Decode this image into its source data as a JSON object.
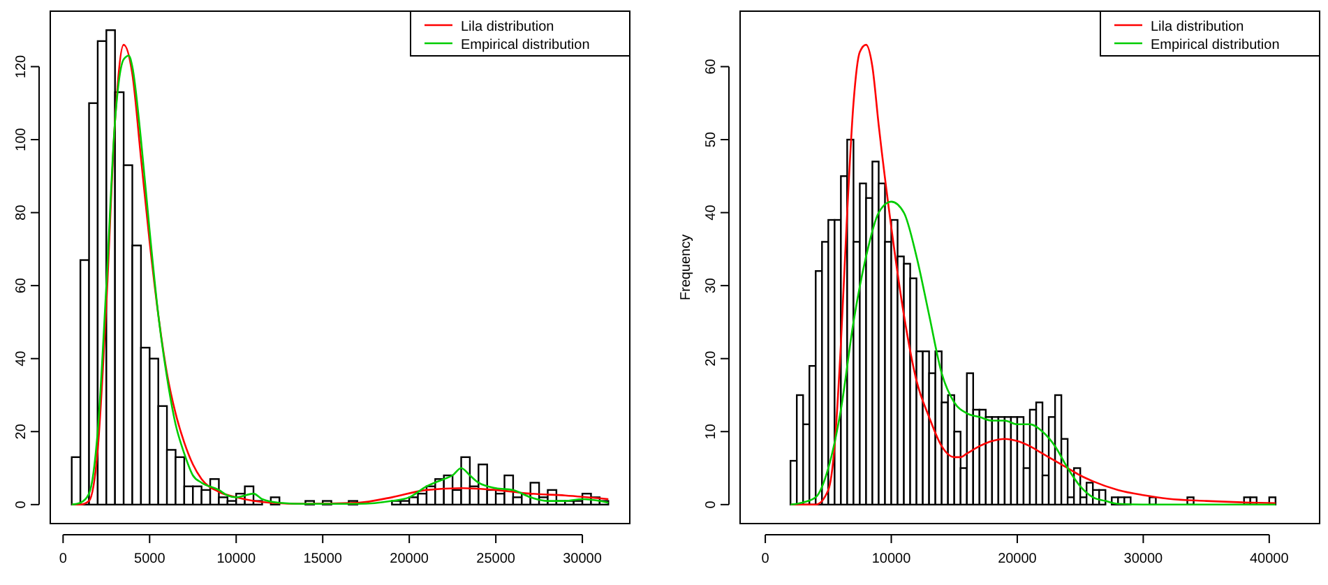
{
  "chart_data": [
    {
      "type": "histogram",
      "color": "#ffffff",
      "legend": "top right",
      "bins": [
        500,
        1000,
        1500,
        2000,
        2500,
        3000,
        3500,
        4000,
        4500,
        5000,
        5500,
        6000,
        6500,
        7000,
        7500,
        8000,
        8500,
        9000,
        9500,
        10000,
        10500,
        11000,
        11500,
        12000,
        12500,
        13000,
        13500,
        14000,
        14500,
        15000,
        15500,
        16000,
        16500,
        17000,
        17500,
        18000,
        18500,
        19000,
        19500,
        20000,
        20500,
        21000,
        21500,
        22000,
        22500,
        23000,
        23500,
        24000,
        24500,
        25000,
        25500,
        26000,
        26500,
        27000,
        27500,
        28000,
        28500,
        29000,
        29500,
        30000,
        30500,
        31000,
        31500
      ],
      "values": [
        13,
        67,
        110,
        127,
        130,
        113,
        93,
        71,
        43,
        40,
        27,
        15,
        13,
        5,
        5,
        4,
        7,
        2,
        1,
        3,
        5,
        1,
        0,
        2,
        0,
        0,
        0,
        1,
        0,
        1,
        0,
        0,
        1,
        0,
        0,
        0,
        0,
        1,
        1,
        2,
        3,
        5,
        7,
        8,
        4,
        13,
        5,
        11,
        4,
        3,
        8,
        2,
        3,
        6,
        2,
        4,
        1,
        1,
        1,
        3,
        2,
        1
      ],
      "series": [
        {
          "name": "Lila distribution",
          "type": "line",
          "color": "#ff0000",
          "x": [
            500,
            1000,
            1500,
            2000,
            2500,
            3000,
            3500,
            4000,
            4500,
            5000,
            5500,
            6000,
            6500,
            7000,
            7500,
            8000,
            9000,
            10000,
            11000,
            12000,
            14000,
            17000,
            19000,
            21000,
            23000,
            25000,
            27000,
            29000,
            31500
          ],
          "values": [
            0,
            0,
            1,
            15,
            55,
            105,
            126,
            118,
            95,
            72,
            52,
            36,
            25,
            17,
            11,
            7,
            3.5,
            2,
            1,
            0.5,
            0.2,
            0.5,
            2,
            4,
            4.5,
            4,
            3,
            2.5,
            1.5
          ]
        },
        {
          "name": "Empirical distribution",
          "type": "line",
          "color": "#00cc00",
          "x": [
            500,
            1000,
            1500,
            2000,
            2500,
            3000,
            3500,
            3800,
            4000,
            4500,
            5000,
            5500,
            6000,
            6500,
            7000,
            7500,
            8000,
            9000,
            9500,
            10000,
            11000,
            11500,
            12500,
            14000,
            17000,
            19000,
            20000,
            21000,
            22000,
            22500,
            23000,
            23500,
            24000,
            25000,
            26000,
            27000,
            28000,
            29000,
            30000,
            31000,
            31500
          ],
          "values": [
            0,
            0.5,
            3,
            20,
            60,
            105,
            122,
            123,
            120,
            100,
            75,
            52,
            35,
            22,
            14,
            8,
            6,
            4,
            2.5,
            2,
            3,
            1.5,
            0.5,
            0.2,
            0.2,
            1,
            2,
            5,
            7,
            8,
            10,
            8,
            6,
            4.5,
            4,
            2,
            1,
            1,
            1.5,
            1,
            0.5
          ]
        }
      ],
      "xlim": [
        -740,
        32740
      ],
      "ylim": [
        -5.2,
        135.2
      ],
      "xticks": [
        0,
        5000,
        10000,
        15000,
        20000,
        25000,
        30000
      ],
      "yticks": [
        0,
        20,
        40,
        60,
        80,
        100,
        120
      ]
    },
    {
      "type": "histogram",
      "color": "#ffffff",
      "legend": "top right",
      "ylabel": "Frequency",
      "bins": [
        2000,
        2500,
        3000,
        3500,
        4000,
        4500,
        5000,
        5500,
        6000,
        6500,
        7000,
        7500,
        8000,
        8500,
        9000,
        9500,
        10000,
        10500,
        11000,
        11500,
        12000,
        12500,
        13000,
        13500,
        14000,
        14500,
        15000,
        15500,
        16000,
        16500,
        17000,
        17500,
        18000,
        18500,
        19000,
        19500,
        20000,
        20500,
        21000,
        21500,
        22000,
        22500,
        23000,
        23500,
        24000,
        24500,
        25000,
        25500,
        26000,
        26500,
        27000,
        27500,
        28000,
        28500,
        29000,
        29500,
        30000,
        30500,
        31000,
        31500,
        32000,
        32500,
        33000,
        33500,
        34000,
        34500,
        35000,
        35500,
        36000,
        36500,
        37000,
        37500,
        38000,
        38500,
        39000,
        39500,
        40000,
        40500
      ],
      "values": [
        6,
        15,
        11,
        19,
        32,
        36,
        39,
        39,
        45,
        50,
        36,
        44,
        42,
        47,
        44,
        36,
        39,
        34,
        33,
        31,
        21,
        21,
        18,
        21,
        14,
        15,
        10,
        5,
        18,
        13,
        13,
        12,
        12,
        12,
        12,
        12,
        12,
        5,
        13,
        14,
        4,
        12,
        15,
        9,
        1,
        5,
        1,
        3,
        2,
        2,
        0,
        1,
        1,
        1,
        0,
        0,
        0,
        1,
        0,
        0,
        0,
        0,
        0,
        1,
        0,
        0,
        0,
        0,
        0,
        0,
        0,
        0,
        1,
        1,
        0,
        0,
        1
      ],
      "series": [
        {
          "name": "Lila distribution",
          "type": "line",
          "color": "#ff0000",
          "x": [
            2000,
            4000,
            5000,
            5500,
            6000,
            6500,
            7000,
            7500,
            8000,
            8500,
            9000,
            10000,
            11000,
            12000,
            13000,
            14000,
            15000,
            15500,
            16000,
            17000,
            18000,
            19000,
            20000,
            21000,
            22000,
            23000,
            24000,
            25000,
            26000,
            28000,
            30000,
            32000,
            35000,
            38000,
            40500
          ],
          "values": [
            0,
            0,
            2,
            8,
            22,
            40,
            55,
            62,
            63,
            60,
            52,
            38,
            26,
            17,
            12,
            8,
            6.5,
            6.5,
            7,
            8,
            8.7,
            9,
            8.7,
            8,
            7,
            6,
            5,
            4,
            3.2,
            2,
            1.3,
            0.8,
            0.5,
            0.3,
            0.2
          ]
        },
        {
          "name": "Empirical distribution",
          "type": "line",
          "color": "#00cc00",
          "x": [
            2000,
            3000,
            4000,
            5000,
            6000,
            7000,
            8000,
            9000,
            10000,
            11000,
            12000,
            13000,
            14000,
            15000,
            16000,
            17000,
            18000,
            19000,
            20000,
            21000,
            22000,
            23000,
            24000,
            25000,
            26000,
            27000,
            28000,
            30000,
            40500
          ],
          "values": [
            0,
            0.3,
            1,
            5,
            13,
            25,
            34,
            40,
            41.5,
            40,
            34,
            26,
            18,
            14,
            12.5,
            12,
            11.5,
            11.5,
            11,
            11,
            10,
            8,
            5,
            2.5,
            1,
            0.5,
            0.1,
            0,
            0
          ]
        }
      ],
      "xlim": [
        -2000,
        44000
      ],
      "ylim": [
        -2.6,
        67.6
      ],
      "xticks": [
        0,
        10000,
        20000,
        30000,
        40000
      ],
      "yticks": [
        0,
        10,
        20,
        30,
        40,
        50,
        60
      ]
    }
  ]
}
